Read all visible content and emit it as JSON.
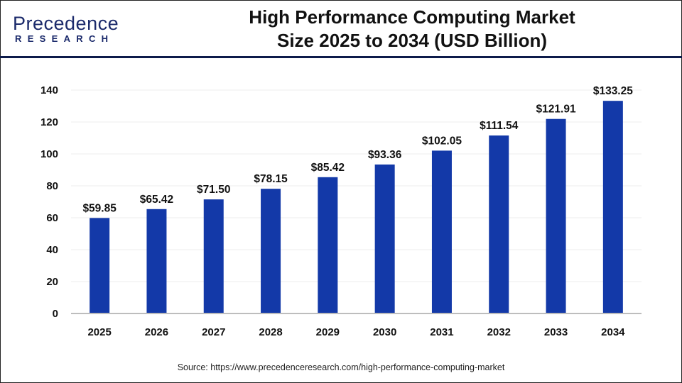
{
  "logo": {
    "text_main": "Precedence",
    "text_sub": "RESEARCH"
  },
  "title_line1": "High Performance Computing Market",
  "title_line2": "Size 2025 to 2034 (USD Billion)",
  "source": "Source: https://www.precedenceresearch.com/high-performance-computing-market",
  "chart_data": {
    "type": "bar",
    "title": "High Performance Computing Market Size 2025 to 2034 (USD Billion)",
    "categories": [
      "2025",
      "2026",
      "2027",
      "2028",
      "2029",
      "2030",
      "2031",
      "2032",
      "2033",
      "2034"
    ],
    "values": [
      59.85,
      65.42,
      71.5,
      78.15,
      85.42,
      93.36,
      102.05,
      111.54,
      121.91,
      133.25
    ],
    "data_labels": [
      "$59.85",
      "$65.42",
      "$71.50",
      "$78.15",
      "$85.42",
      "$93.36",
      "$102.05",
      "$111.54",
      "$121.91",
      "$133.25"
    ],
    "yticks": [
      0,
      20,
      40,
      60,
      80,
      100,
      120,
      140
    ],
    "ylim": [
      0,
      140
    ],
    "grid": true,
    "bar_color": "#1339a8",
    "xlabel": "",
    "ylabel": ""
  }
}
